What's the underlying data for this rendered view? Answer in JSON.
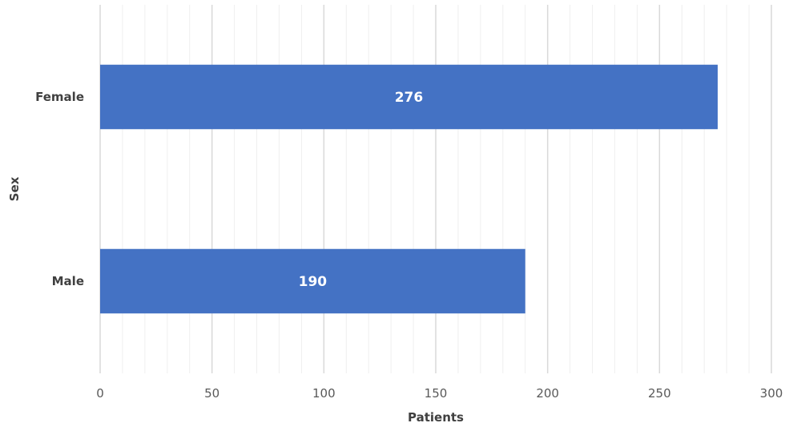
{
  "chart_data": {
    "type": "bar",
    "orientation": "horizontal",
    "categories": [
      "Female",
      "Male"
    ],
    "values": [
      276,
      190
    ],
    "data_labels": [
      "276",
      "190"
    ],
    "xlabel": "Patients",
    "ylabel": "Sex",
    "xlim": [
      0,
      300
    ],
    "x_ticks": [
      "0",
      "50",
      "100",
      "150",
      "200",
      "250",
      "300"
    ],
    "x_tick_values": [
      0,
      50,
      100,
      150,
      200,
      250,
      300
    ],
    "minor_grid_step": 10,
    "grid": true,
    "legend": "none",
    "bar_color": "#4472C4",
    "major_grid_color": "#D9D9D9",
    "minor_grid_color": "#EFEFEF"
  }
}
